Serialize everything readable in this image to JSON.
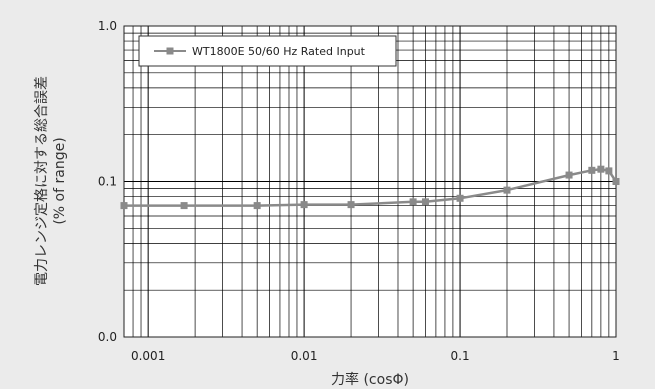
{
  "chart_data": {
    "type": "line",
    "x_scale": "log",
    "y_scale": "log",
    "xlim": [
      0.0007,
      1.0
    ],
    "ylim": [
      0.01,
      1.0
    ],
    "x_ticks": [
      {
        "value": 0.001,
        "label": "0.001"
      },
      {
        "value": 0.01,
        "label": "0.01"
      },
      {
        "value": 0.1,
        "label": "0.1"
      },
      {
        "value": 1.0,
        "label": "1"
      }
    ],
    "y_ticks": [
      {
        "value": 1.0,
        "label": "1.0"
      },
      {
        "value": 0.1,
        "label": "0.1"
      },
      {
        "value": 0.01,
        "label": "0.0"
      }
    ],
    "xlabel": "力率 (cosΦ)",
    "ylabel_line1": "電力レンジ定格に対する総合誤差",
    "ylabel_line2": "(% of range)",
    "grid": true,
    "legend_position": "top-left",
    "series": [
      {
        "name": "WT1800E 50/60 Hz Rated Input",
        "color": "#8a8a8a",
        "x": [
          0.0007,
          0.0017,
          0.005,
          0.01,
          0.02,
          0.05,
          0.06,
          0.1,
          0.2,
          0.5,
          0.7,
          0.8,
          0.9,
          1.0
        ],
        "y": [
          0.07,
          0.07,
          0.07,
          0.071,
          0.071,
          0.074,
          0.074,
          0.078,
          0.088,
          0.11,
          0.118,
          0.12,
          0.117,
          0.1
        ]
      }
    ]
  }
}
